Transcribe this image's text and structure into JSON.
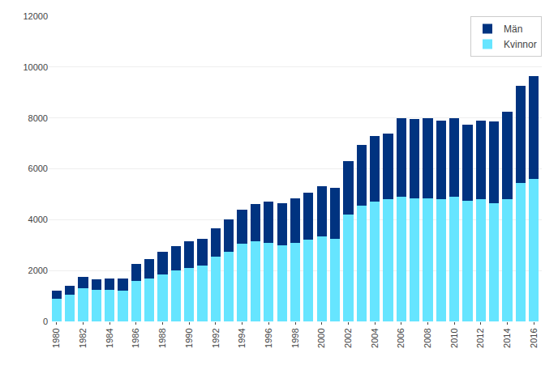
{
  "chart_data": {
    "type": "bar",
    "stacked": true,
    "categories": [
      "1980",
      null,
      "1982",
      null,
      "1984",
      null,
      "1986",
      null,
      "1988",
      null,
      "1990",
      null,
      "1992",
      null,
      "1994",
      null,
      "1996",
      null,
      "1998",
      null,
      "2000",
      null,
      "2002",
      null,
      "2004",
      null,
      "2006",
      null,
      "2008",
      null,
      "2010",
      null,
      "2012",
      null,
      "2014",
      null,
      "2016"
    ],
    "series": [
      {
        "name": "Kvinnor",
        "color": "#66E5FF",
        "values": [
          900,
          1050,
          1300,
          1250,
          1250,
          1200,
          1600,
          1700,
          1850,
          2000,
          2100,
          2200,
          2550,
          2750,
          3050,
          3150,
          3100,
          3000,
          3100,
          3200,
          3350,
          3250,
          4200,
          4550,
          4700,
          4800,
          4900,
          4850,
          4850,
          4800,
          4900,
          4750,
          4800,
          4650,
          4800,
          5450,
          5600
        ]
      },
      {
        "name": "Män",
        "color": "#003380",
        "values": [
          300,
          350,
          450,
          400,
          450,
          500,
          650,
          750,
          900,
          950,
          1050,
          1050,
          1100,
          1250,
          1350,
          1450,
          1600,
          1650,
          1750,
          1850,
          1950,
          2000,
          2100,
          2400,
          2600,
          2600,
          3100,
          3100,
          3150,
          3100,
          3100,
          3000,
          3100,
          3200,
          3450,
          3800,
          4050
        ]
      }
    ],
    "ylim": [
      0,
      12000
    ],
    "yticks": [
      0,
      2000,
      4000,
      6000,
      8000,
      10000,
      12000
    ],
    "grid": true,
    "legend": "upper right"
  }
}
